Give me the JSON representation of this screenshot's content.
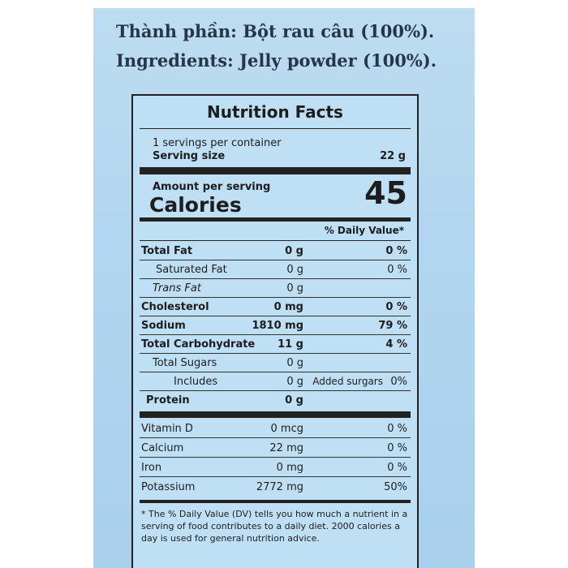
{
  "ingredients": {
    "vietnamese": "Thành phần: Bột rau câu (100%).",
    "english": "Ingredients: Jelly powder (100%)."
  },
  "label": {
    "title": "Nutrition Facts",
    "servings_per_container": "1 servings per container",
    "serving_size_label": "Serving size",
    "serving_size_value": "22 g",
    "amount_per_serving": "Amount per serving",
    "calories_label": "Calories",
    "calories_value": "45",
    "daily_value_header": "% Daily Value*",
    "nutrients": [
      {
        "name": "Total Fat",
        "amount": "0 g",
        "dv": "0 %"
      },
      {
        "name": "Saturated Fat",
        "amount": "0 g",
        "dv": "0 %"
      },
      {
        "name": "Trans Fat",
        "amount": "0 g",
        "dv": ""
      },
      {
        "name": "Cholesterol",
        "amount": "0 mg",
        "dv": "0 %"
      },
      {
        "name": "Sodium",
        "amount": "1810 mg",
        "dv": "79 %"
      },
      {
        "name": "Total Carbohydrate",
        "amount": "11 g",
        "dv": "4 %"
      },
      {
        "name": "Total Sugars",
        "amount": "0 g",
        "dv": ""
      },
      {
        "name": "Includes",
        "amount": "0 g",
        "mid": "Added surgars",
        "dv": "0%"
      },
      {
        "name": "Protein",
        "amount": "0 g",
        "dv": ""
      },
      {
        "name": "Vitamin D",
        "amount": "0 mcg",
        "dv": "0 %"
      },
      {
        "name": "Calcium",
        "amount": "22 mg",
        "dv": "0 %"
      },
      {
        "name": "Iron",
        "amount": "0 mg",
        "dv": "0 %"
      },
      {
        "name": "Potassium",
        "amount": "2772 mg",
        "dv": "50%"
      }
    ],
    "footnote": "* The % Daily Value (DV) tells you how much a nutrient in a serving of food contributes to a daily diet. 2000 calories a day is used for general nutrition advice."
  }
}
